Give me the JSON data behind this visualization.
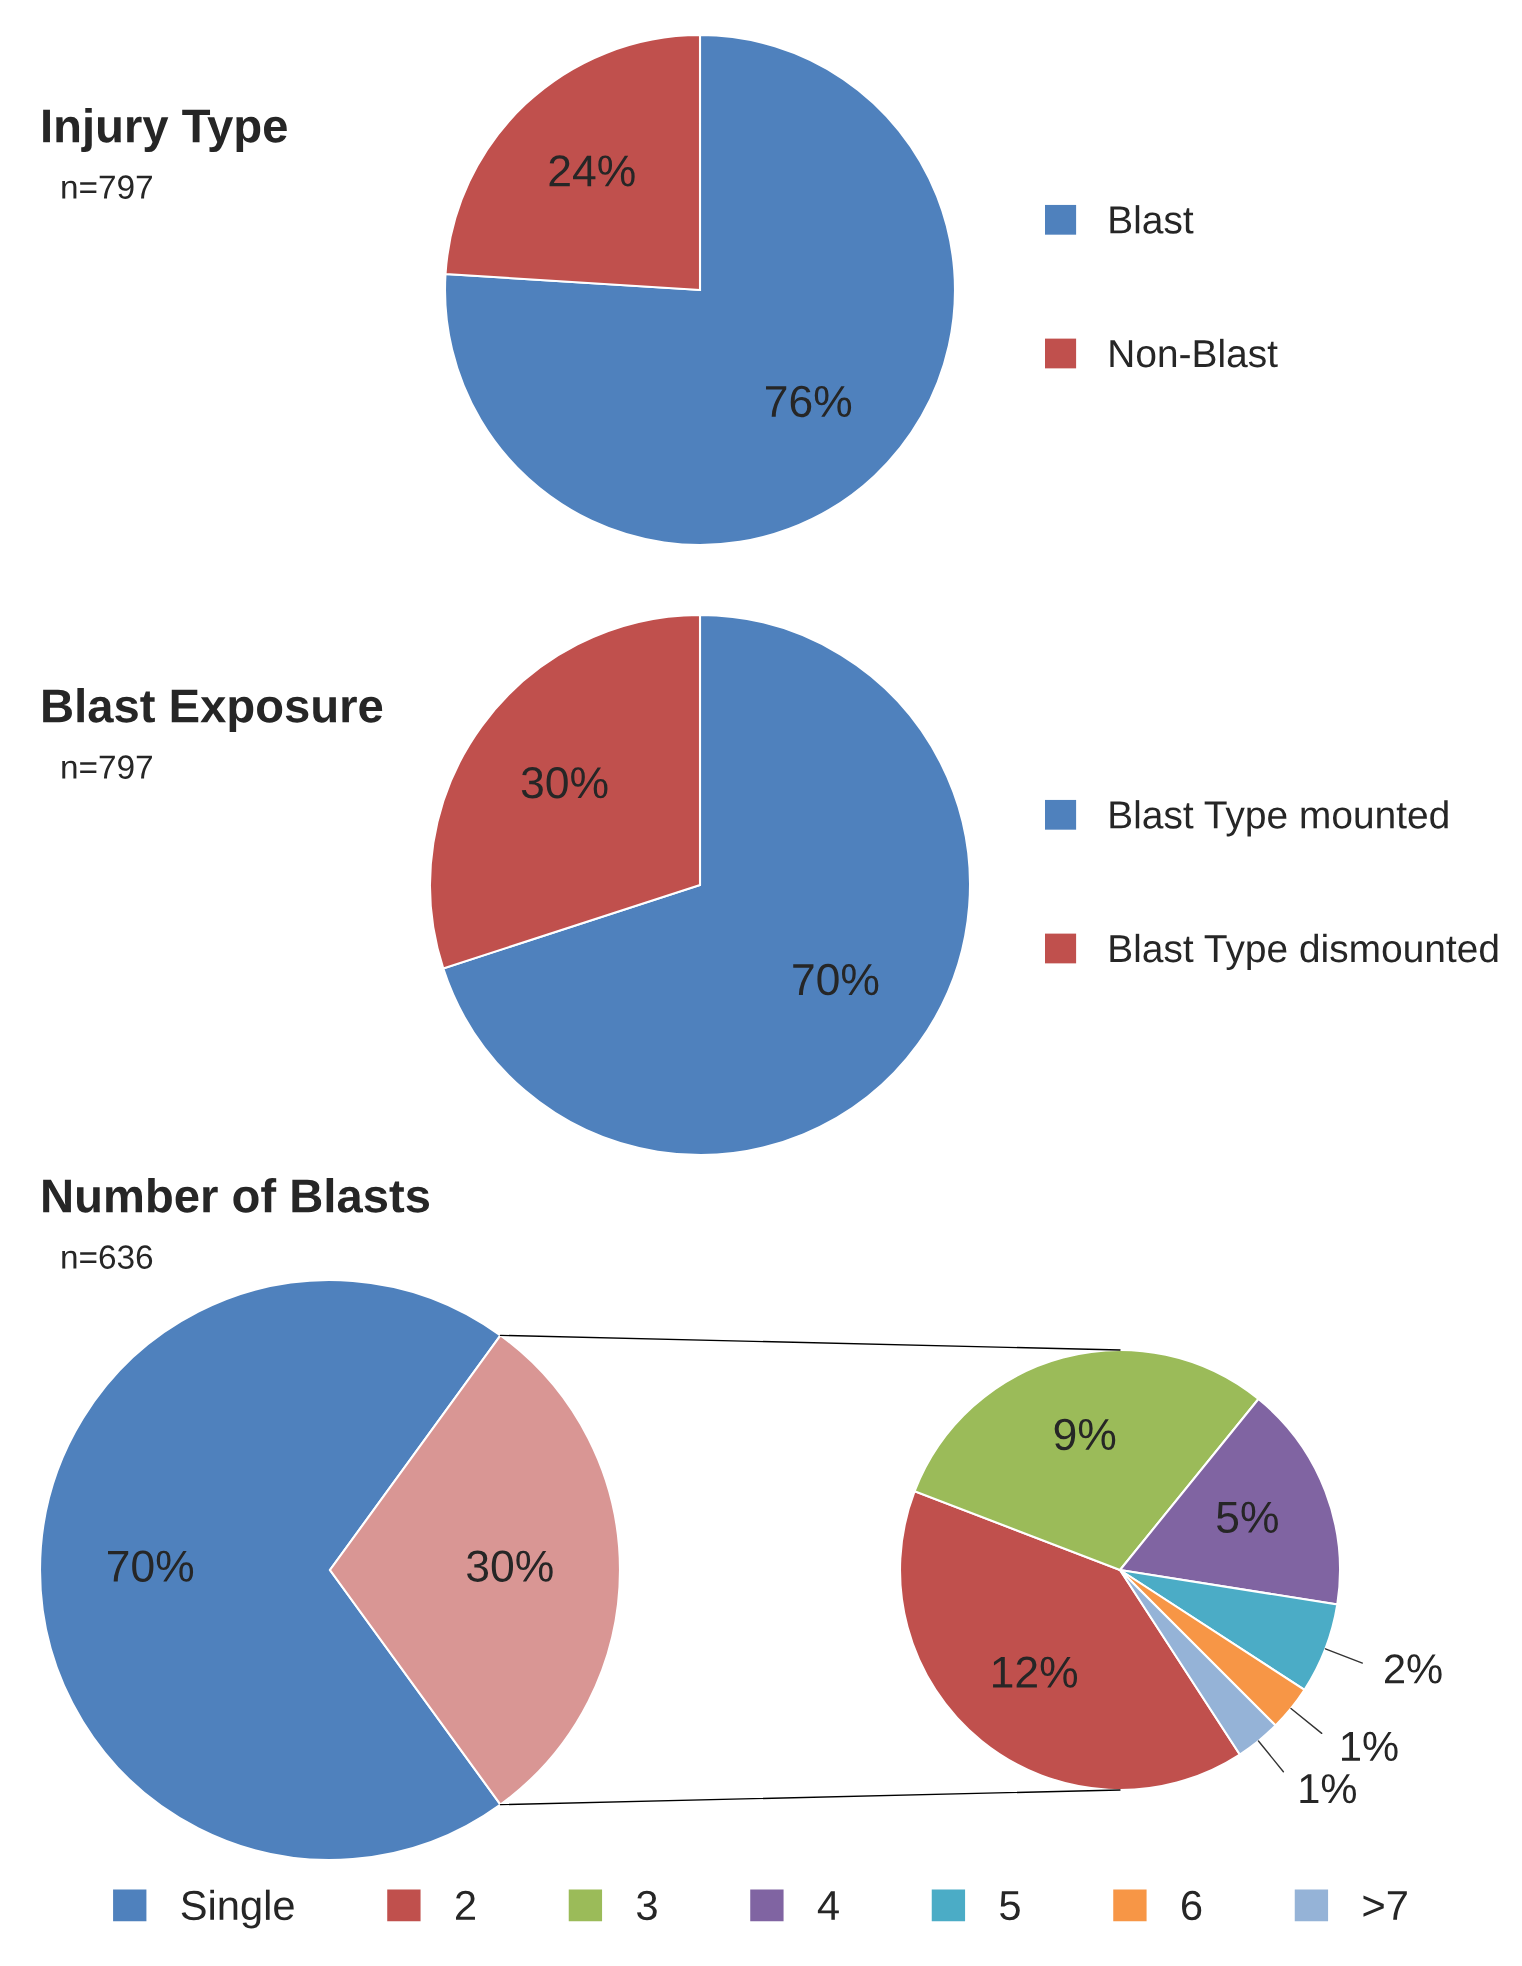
{
  "chart_data": [
    {
      "type": "pie",
      "title": "Injury Type",
      "subtitle": "n=797",
      "categories": [
        "Blast",
        "Non-Blast"
      ],
      "values": [
        76,
        24
      ],
      "colors": [
        "#4f81bd",
        "#c0504d"
      ],
      "value_labels": [
        "76%",
        "24%"
      ],
      "legend": "right"
    },
    {
      "type": "pie",
      "title": "Blast Exposure",
      "subtitle": "n=797",
      "categories": [
        "Blast Type mounted",
        "Blast Type dismounted"
      ],
      "values": [
        70,
        30
      ],
      "colors": [
        "#4f81bd",
        "#c0504d"
      ],
      "value_labels": [
        "70%",
        "30%"
      ],
      "legend": "right"
    },
    {
      "type": "pie",
      "title": "Number of Blasts",
      "subtitle": "n=636",
      "categories": [
        "Single",
        null
      ],
      "values": [
        70,
        30
      ],
      "colors": [
        "#4f81bd",
        "#d99694"
      ],
      "value_labels": [
        "70%",
        "30%"
      ],
      "legend": "bottom"
    },
    {
      "type": "pie",
      "categories": [
        "2",
        "3",
        "4",
        "5",
        "6",
        ">7"
      ],
      "values": [
        12,
        9,
        5,
        2,
        1,
        1
      ],
      "colors": [
        "#c0504d",
        "#9bbb59",
        "#8064a2",
        "#4bacc6",
        "#f79646",
        "#95b3d7"
      ],
      "value_labels": [
        "12%",
        "9%",
        "5%",
        "2%",
        "1%",
        "1%"
      ],
      "legend": "bottom"
    }
  ]
}
